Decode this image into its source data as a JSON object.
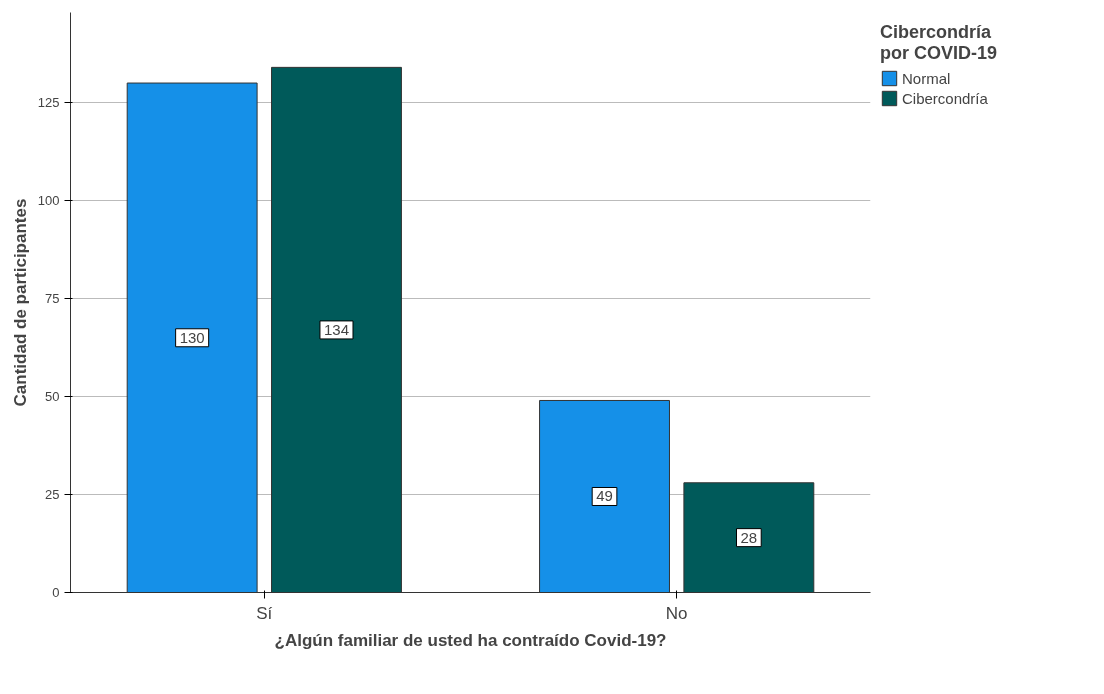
{
  "chart_data": {
    "type": "bar",
    "xlabel": "¿Algún familiar de usted ha contraído Covid-19?",
    "ylabel": "Cantidad de participantes",
    "legend_title": "Cibercondría por COVID-19",
    "categories": [
      "Sí",
      "No"
    ],
    "series": [
      {
        "name": "Normal",
        "color": "#1590e8",
        "values": [
          130,
          49
        ]
      },
      {
        "name": "Cibercondría",
        "color": "#005a5a",
        "values": [
          134,
          28
        ]
      }
    ],
    "ylim": [
      0,
      148
    ],
    "yticks": [
      0,
      25,
      50,
      75,
      100,
      125
    ],
    "grid": "y",
    "legend": "top right",
    "data_labels": true
  }
}
